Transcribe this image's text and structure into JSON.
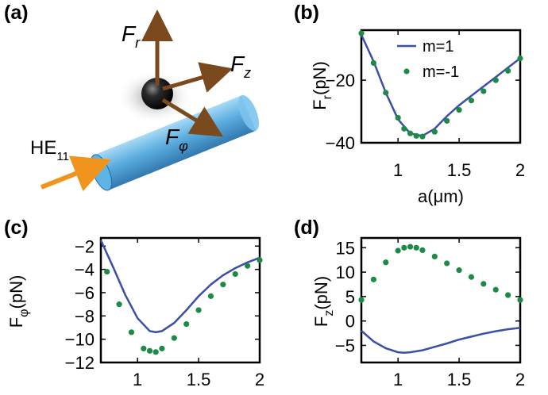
{
  "panel_labels": [
    "(a)",
    "(b)",
    "(c)",
    "(d)"
  ],
  "schematic": {
    "mode_label": "HE",
    "mode_subscript": "11",
    "forces": [
      {
        "symbol": "F",
        "subscript": "r"
      },
      {
        "symbol": "F",
        "subscript": "z"
      },
      {
        "symbol": "F",
        "subscript": "φ"
      }
    ]
  },
  "colors": {
    "line": "#3b4fa8",
    "dots": "#1e8a47",
    "arrow": "#7a4a1e",
    "cylinder": "#4aa5dc",
    "beam": "#f0941e"
  },
  "chart_data": [
    {
      "id": "b",
      "type": "line",
      "xlabel": "a(μm)",
      "ylabel": "F",
      "ylabel_sub": "r",
      "ylabel_unit": "(pN)",
      "xlim": [
        0.7,
        2.0
      ],
      "ylim": [
        -40,
        -4
      ],
      "xticks": [
        1,
        1.5,
        2
      ],
      "yticks": [
        -20,
        -40
      ],
      "legend": "top-right",
      "series": [
        {
          "name": "m=1",
          "style": "line",
          "x": [
            0.7,
            0.8,
            0.9,
            1.0,
            1.1,
            1.2,
            1.3,
            1.4,
            1.5,
            1.6,
            1.7,
            1.8,
            1.9,
            2.0
          ],
          "y": [
            -5.5,
            -14,
            -24,
            -32.5,
            -37,
            -37.8,
            -35.5,
            -31.5,
            -28,
            -25,
            -22,
            -19,
            -16,
            -13
          ]
        },
        {
          "name": "m=-1",
          "style": "dots",
          "x": [
            0.7,
            0.8,
            0.9,
            1.0,
            1.05,
            1.1,
            1.15,
            1.2,
            1.3,
            1.4,
            1.5,
            1.6,
            1.7,
            1.8,
            1.9,
            2.0
          ],
          "y": [
            -5,
            -14.5,
            -24,
            -32,
            -35.5,
            -37,
            -37.8,
            -38,
            -36.5,
            -33,
            -29.5,
            -26.5,
            -23.5,
            -20,
            -17,
            -13
          ]
        }
      ]
    },
    {
      "id": "c",
      "type": "line",
      "xlabel": "",
      "ylabel": "F",
      "ylabel_sub": "φ",
      "ylabel_unit": "(pN)",
      "xlim": [
        0.7,
        2.0
      ],
      "ylim": [
        -12,
        -1.3
      ],
      "xticks": [
        1,
        1.5,
        2
      ],
      "yticks": [
        -2,
        -4,
        -6,
        -8,
        -10,
        -12
      ],
      "series": [
        {
          "style": "line",
          "x": [
            0.7,
            0.8,
            0.9,
            1.0,
            1.1,
            1.15,
            1.2,
            1.3,
            1.4,
            1.5,
            1.6,
            1.7,
            1.8,
            1.9,
            2.0
          ],
          "y": [
            -1.5,
            -3.8,
            -6.2,
            -8.2,
            -9.3,
            -9.4,
            -9.3,
            -8.6,
            -7.5,
            -6.3,
            -5.3,
            -4.5,
            -3.9,
            -3.4,
            -3.0
          ]
        },
        {
          "style": "dots",
          "x": [
            0.75,
            0.85,
            0.95,
            1.05,
            1.1,
            1.15,
            1.2,
            1.3,
            1.4,
            1.5,
            1.6,
            1.7,
            1.8,
            1.9,
            2.0
          ],
          "y": [
            -4.2,
            -7.0,
            -9.4,
            -10.8,
            -11.0,
            -11.1,
            -10.8,
            -9.9,
            -8.7,
            -7.5,
            -6.3,
            -5.3,
            -4.4,
            -3.7,
            -3.2
          ]
        }
      ]
    },
    {
      "id": "d",
      "type": "line",
      "xlabel": "",
      "ylabel": "F",
      "ylabel_sub": "z",
      "ylabel_unit": "(pN)",
      "xlim": [
        0.7,
        2.0
      ],
      "ylim": [
        -8.5,
        17
      ],
      "xticks": [
        1,
        1.5,
        2
      ],
      "yticks": [
        15,
        10,
        5,
        0,
        -5
      ],
      "series": [
        {
          "style": "line",
          "x": [
            0.7,
            0.8,
            0.9,
            1.0,
            1.05,
            1.1,
            1.2,
            1.3,
            1.4,
            1.5,
            1.6,
            1.7,
            1.8,
            1.9,
            2.0
          ],
          "y": [
            -2.0,
            -4.2,
            -5.6,
            -6.4,
            -6.5,
            -6.4,
            -6.0,
            -5.3,
            -4.6,
            -3.8,
            -3.2,
            -2.6,
            -2.1,
            -1.7,
            -1.4
          ]
        },
        {
          "style": "dots",
          "x": [
            0.7,
            0.8,
            0.9,
            1.0,
            1.05,
            1.1,
            1.15,
            1.2,
            1.3,
            1.4,
            1.5,
            1.6,
            1.7,
            1.8,
            1.9,
            2.0
          ],
          "y": [
            4.3,
            8.5,
            12.0,
            14.4,
            15.0,
            15.2,
            15.0,
            14.5,
            13.2,
            11.8,
            10.4,
            9.0,
            7.6,
            6.4,
            5.3,
            4.3
          ]
        }
      ]
    }
  ]
}
